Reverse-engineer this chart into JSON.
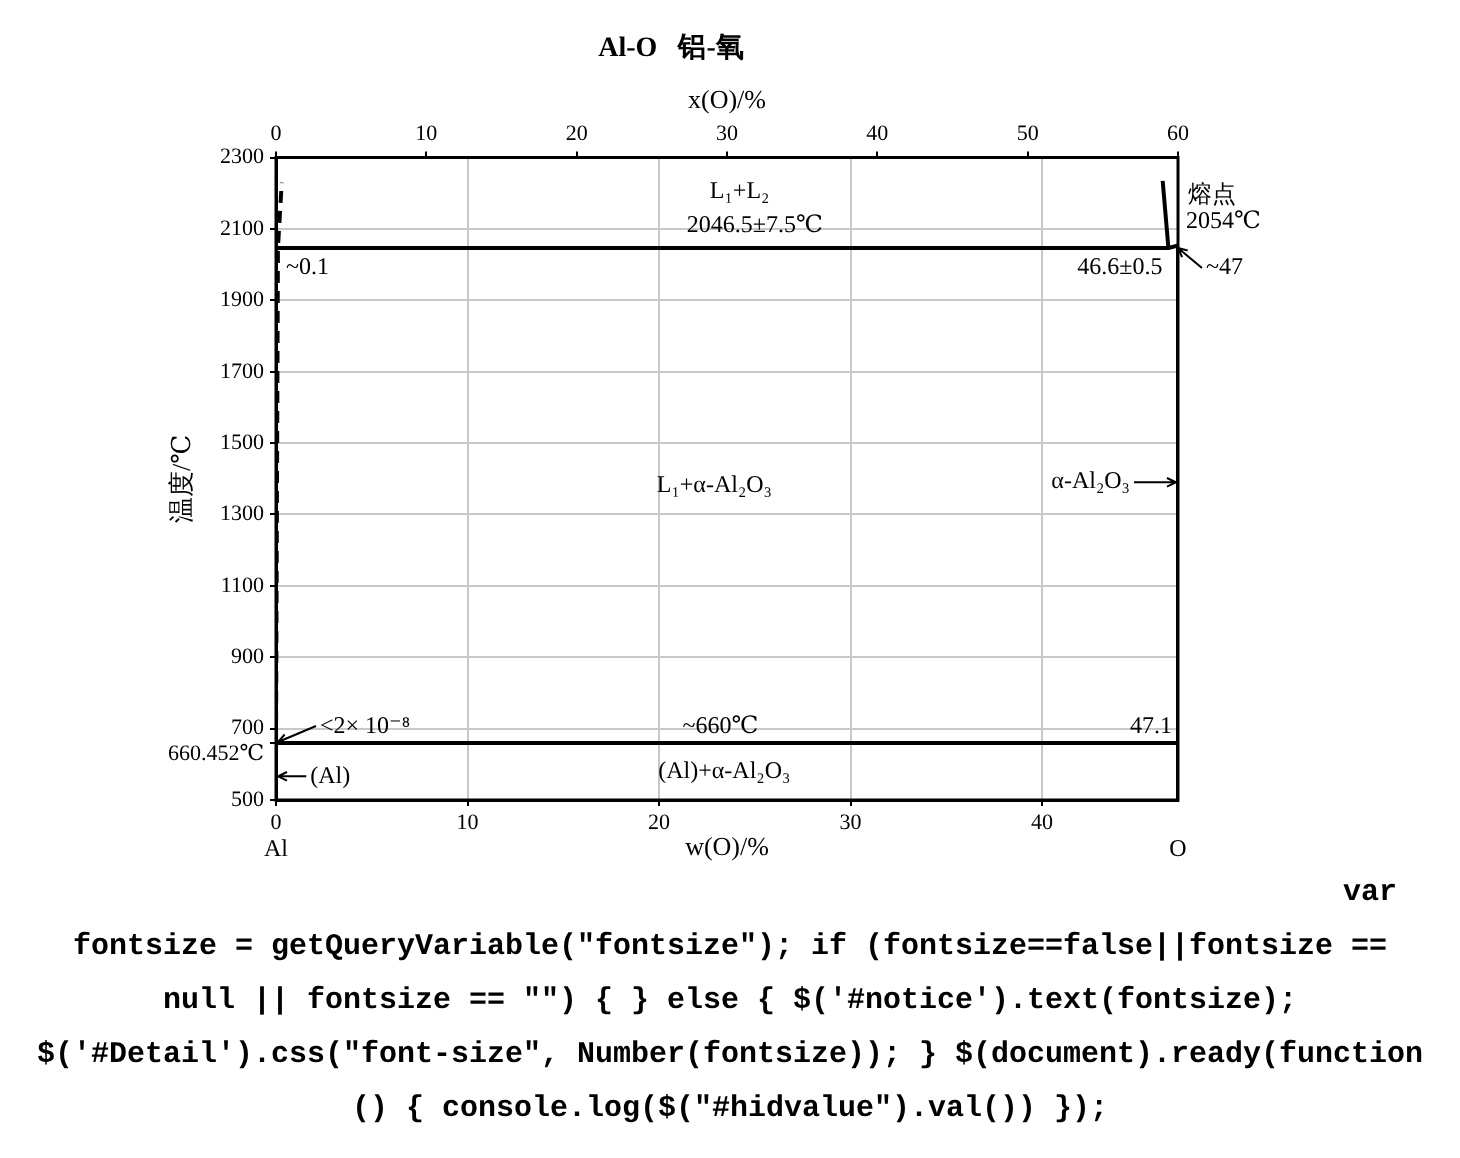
{
  "chart_data": {
    "type": "line",
    "title": "Al-O   铝-氧",
    "xlabel": "w(O)/%",
    "x2label": "x(O)/%",
    "ylabel": "温度/℃",
    "xlim": [
      0,
      47.1
    ],
    "xticks": [
      0,
      10,
      20,
      30,
      40
    ],
    "x2lim": [
      0,
      60
    ],
    "x2ticks": [
      0,
      10,
      20,
      30,
      40,
      50,
      60
    ],
    "ylim": [
      500,
      2300
    ],
    "yticks": [
      500,
      {
        "value": 660.452,
        "label": "660.452℃"
      },
      700,
      900,
      1100,
      1300,
      1500,
      1700,
      1900,
      2100,
      2300
    ],
    "grid": true,
    "marker": "none",
    "series": [
      {
        "color": "#000000",
        "x": [
          0.1,
          46.6
        ],
        "values": [
          2046.5,
          2046.5
        ]
      },
      {
        "color": "#000000",
        "x": [
          0,
          47.1
        ],
        "values": [
          660,
          660
        ]
      },
      {
        "color": "#000000",
        "x": [
          47.1,
          47.1
        ],
        "values": [
          500,
          2054
        ]
      },
      {
        "color": "#000000",
        "x": [
          46.3,
          46.6,
          47.1
        ],
        "values": [
          2235,
          2046.5,
          2054
        ]
      },
      {
        "color": "#000000",
        "x": [
          0,
          0.1,
          0.3
        ],
        "values": [
          660,
          2046.5,
          2230
        ],
        "line_style": "dashed"
      }
    ],
    "annotations": [
      "L₁+L₂",
      {
        "text": "2046.5±7.5℃",
        "x": 25,
        "y": 2046.5
      },
      {
        "text": "~0.1",
        "x": 0.1,
        "y": 2046.5
      },
      {
        "text": "46.6±0.5",
        "x": 46.6,
        "y": 2046.5
      },
      {
        "text": "熔点",
        "x": 47.1,
        "y": 2054
      },
      {
        "text": "2054℃",
        "x": 47.1,
        "y": 2054
      },
      {
        "text": "~47",
        "x": 47,
        "y": 2046.5
      },
      "L₁+α-Al₂O₃",
      {
        "text": "α-Al₂O₃",
        "x": 47.1,
        "y": 1392
      },
      {
        "text": "<2× 10⁻⁸",
        "x": 0,
        "y": 660
      },
      {
        "text": "~660℃",
        "x": 23.2,
        "y": 660
      },
      {
        "text": "47.1",
        "x": 47.1,
        "y": 660
      },
      "(Al)+α-Al₂O₃",
      "(Al)",
      "Al",
      {
        "text": "O",
        "x": 47.1,
        "y": 500
      },
      "var fontsize = getQueryVariable(\"fontsize\"); if (fontsize==false||fontsize == null || fontsize == \"\") { } else { $('#notice').text(fontsize); $('#Detail').css(\"font-size\", Number(fontsize)); } $(document).ready(function () { console.log($(\"#hidvalue\").val()) });"
    ]
  }
}
